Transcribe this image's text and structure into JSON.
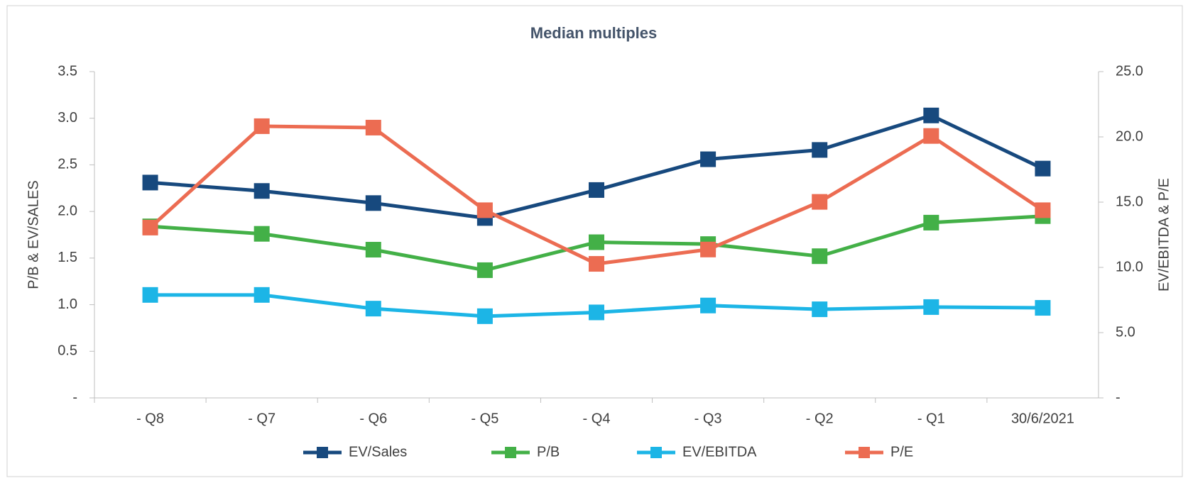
{
  "chart_data": {
    "type": "line",
    "title": "Median multiples",
    "y_label": "P/B & EV/SALES",
    "y2_label": "EV/EBITDA & P/E",
    "categories": [
      "- Q8",
      "- Q7",
      "- Q6",
      "- Q5",
      "- Q4",
      "- Q3",
      "- Q2",
      "- Q1",
      "30/6/2021"
    ],
    "ylim": [
      0,
      3.5
    ],
    "yticks": [
      {
        "value": 0,
        "label": "-"
      },
      0.5,
      {
        "value": 1,
        "label": "1.0"
      },
      1.5,
      {
        "value": 2,
        "label": "2.0"
      },
      2.5,
      {
        "value": 3,
        "label": "3.0"
      },
      3.5
    ],
    "y2lim": [
      0,
      25
    ],
    "y2ticks": [
      {
        "value": 0,
        "label": "-"
      },
      {
        "value": 5,
        "label": "5.0"
      },
      {
        "value": 10,
        "label": "10.0"
      },
      {
        "value": 15,
        "label": "15.0"
      },
      {
        "value": 20,
        "label": "20.0"
      },
      {
        "value": 25,
        "label": "25.0"
      }
    ],
    "series": [
      {
        "name": "EV/Sales",
        "color": "#17497e",
        "values": [
          2.31,
          2.22,
          2.09,
          1.93,
          2.23,
          2.56,
          2.66,
          3.03,
          2.46
        ]
      },
      {
        "name": "P/B",
        "color": "#43b047",
        "values": [
          1.84,
          1.76,
          1.59,
          1.37,
          1.67,
          1.65,
          1.52,
          1.88,
          1.95
        ]
      },
      {
        "name": "EV/EBITDA",
        "color": "#1cb5e6",
        "axis": "y2",
        "values": [
          7.89,
          7.89,
          6.84,
          6.26,
          6.55,
          7.08,
          6.79,
          6.96,
          6.9
        ]
      },
      {
        "name": "P/E",
        "color": "#ec6c52",
        "axis": "y2",
        "values": [
          13.05,
          20.82,
          20.71,
          14.38,
          10.27,
          11.37,
          15.02,
          20.07,
          14.38
        ]
      }
    ],
    "legend": "bottom"
  }
}
